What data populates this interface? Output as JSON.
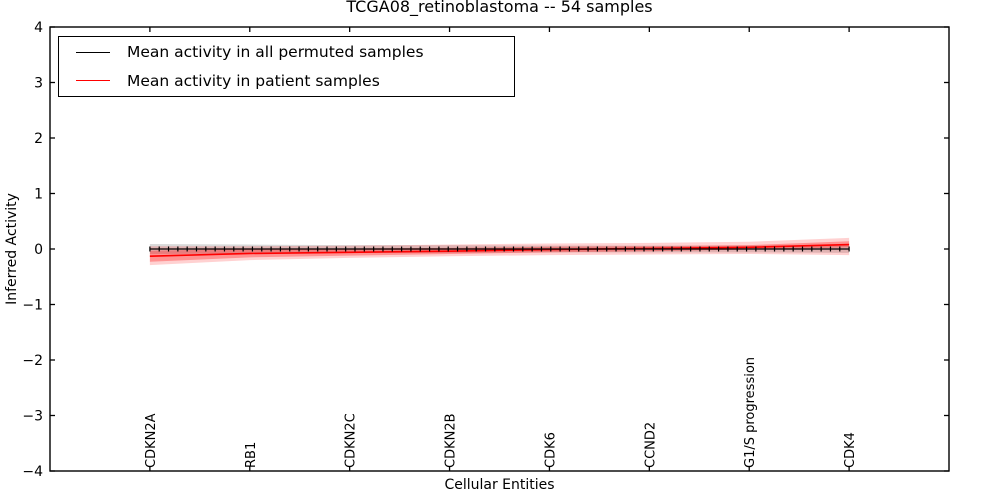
{
  "chart_data": {
    "type": "line",
    "title": "TCGA08_retinoblastoma -- 54 samples",
    "xlabel": "Cellular Entities",
    "ylabel": "Inferred Activity",
    "xlim": [
      -1,
      8
    ],
    "ylim": [
      -4,
      4
    ],
    "grid": false,
    "yticks": [
      4,
      3,
      2,
      1,
      0,
      -1,
      -2,
      -3,
      -4
    ],
    "ytick_labels": [
      "4",
      "3",
      "2",
      "1",
      "0",
      "−1",
      "−2",
      "−3",
      "−4"
    ],
    "categories": [
      "CDKN2A",
      "RB1",
      "CDKN2C",
      "CDKN2B",
      "CDK6",
      "CCND2",
      "G1/S progression",
      "CDK4"
    ],
    "series": [
      {
        "name": "Mean activity in all permuted samples",
        "color": "#000000",
        "values": [
          0,
          0,
          0,
          0,
          0,
          0,
          0,
          0
        ],
        "band_upper": [
          0.09,
          0.08,
          0.07,
          0.07,
          0.06,
          0.06,
          0.06,
          0.07
        ],
        "band_lower": [
          -0.09,
          -0.08,
          -0.07,
          -0.07,
          -0.06,
          -0.06,
          -0.06,
          -0.07
        ],
        "band_color": "rgba(130,130,130,0.30)",
        "marker": "vertical-tick",
        "marker_count": 76
      },
      {
        "name": "Mean activity in patient samples",
        "color": "#ff0000",
        "values": [
          -0.13,
          -0.08,
          -0.06,
          -0.04,
          -0.01,
          0.01,
          0.03,
          0.08
        ],
        "outer_upper": [
          0.05,
          0.05,
          0.06,
          0.08,
          0.1,
          0.11,
          0.13,
          0.2
        ],
        "outer_lower": [
          -0.29,
          -0.2,
          -0.16,
          -0.13,
          -0.11,
          -0.1,
          -0.09,
          -0.11
        ],
        "outer_color": "rgba(255,0,0,0.18)",
        "inner_upper": [
          -0.03,
          0.0,
          0.01,
          0.02,
          0.04,
          0.05,
          0.07,
          0.14
        ],
        "inner_lower": [
          -0.23,
          -0.15,
          -0.12,
          -0.09,
          -0.06,
          -0.04,
          -0.01,
          0.03
        ],
        "inner_color": "rgba(255,0,0,0.30)"
      }
    ],
    "legend": {
      "position": "upper-left",
      "entries": [
        "Mean activity in all permuted samples",
        "Mean activity in patient samples"
      ]
    }
  }
}
